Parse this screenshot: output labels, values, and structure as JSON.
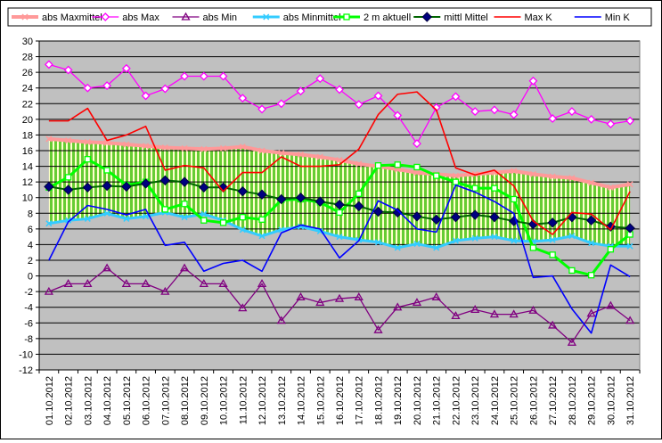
{
  "chart_data": {
    "type": "line",
    "title": "",
    "xlabel": "",
    "ylabel": "",
    "ylim": [
      -12,
      30
    ],
    "ytick_step": 2,
    "grid": true,
    "legend_position": "top",
    "plot_background": "#c0c0c0",
    "band_fill": "green-yellow hatched (between abs Minmittel and abs Maxmittel)",
    "categories": [
      "01.10.2012",
      "02.10.2012",
      "03.10.2012",
      "04.10.2012",
      "05.10.2012",
      "06.10.2012",
      "07.10.2012",
      "08.10.2012",
      "09.10.2012",
      "10.10.2012",
      "11.10.2012",
      "12.10.2012",
      "13.10.2012",
      "14.10.2012",
      "15.10.2012",
      "16.10.2012",
      "17.10.2012",
      "18.10.2012",
      "19.10.2012",
      "20.10.2012",
      "21.10.2012",
      "22.10.2012",
      "23.10.2012",
      "24.10.2012",
      "25.10.2012",
      "26.10.2012",
      "27.10.2012",
      "28.10.2012",
      "29.10.2012",
      "30.10.2012",
      "31.10.2012"
    ],
    "series": [
      {
        "name": "abs Maxmittel",
        "color": "#ff9999",
        "marker": "x",
        "values": [
          17.5,
          17.3,
          17.1,
          17.0,
          16.8,
          16.6,
          16.4,
          16.3,
          16.2,
          16.3,
          16.5,
          16.0,
          15.7,
          15.5,
          15.2,
          14.8,
          14.3,
          14.0,
          13.6,
          13.2,
          13.0,
          12.8,
          13.0,
          13.2,
          13.4,
          13.0,
          12.7,
          12.5,
          11.9,
          11.3,
          11.7
        ]
      },
      {
        "name": "abs Max",
        "color": "#ff00ff",
        "marker": "diamond-open",
        "values": [
          27.0,
          26.3,
          24.0,
          24.3,
          26.5,
          23.0,
          23.9,
          25.5,
          25.5,
          25.5,
          22.7,
          21.3,
          22.0,
          23.6,
          25.2,
          23.8,
          21.9,
          23.0,
          20.5,
          16.9,
          21.5,
          22.9,
          21.0,
          21.2,
          20.6,
          24.9,
          20.1,
          21.0,
          20.0,
          19.4,
          19.8
        ]
      },
      {
        "name": "abs Min",
        "color": "#800080",
        "marker": "triangle-open",
        "values": [
          -2.0,
          -1.0,
          -1.0,
          1.0,
          -1.0,
          -1.0,
          -2.0,
          1.0,
          -1.0,
          -1.0,
          -4.1,
          -1.0,
          -5.7,
          -2.7,
          -3.4,
          -2.9,
          -2.7,
          -6.9,
          -4.0,
          -3.4,
          -2.7,
          -5.1,
          -4.3,
          -4.9,
          -4.9,
          -4.4,
          -6.3,
          -8.5,
          -4.8,
          -3.8,
          -5.7
        ]
      },
      {
        "name": "abs Minmittel",
        "color": "#33ccff",
        "marker": "x",
        "values": [
          6.7,
          7.1,
          7.3,
          8.0,
          7.3,
          7.6,
          8.1,
          7.5,
          7.9,
          7.1,
          5.9,
          5.1,
          5.9,
          6.3,
          5.7,
          5.0,
          4.6,
          4.3,
          3.6,
          4.1,
          3.6,
          4.5,
          4.8,
          5.0,
          4.5,
          4.4,
          4.6,
          5.1,
          4.2,
          3.8,
          3.8
        ]
      },
      {
        "name": "2 m aktuell",
        "color": "#00ff00",
        "marker": "square-open",
        "values": [
          11.3,
          12.6,
          14.9,
          13.5,
          11.6,
          12.0,
          8.5,
          9.2,
          7.1,
          6.8,
          7.5,
          7.2,
          9.7,
          9.8,
          9.4,
          8.1,
          10.5,
          14.1,
          14.2,
          13.9,
          12.8,
          12.0,
          11.2,
          11.2,
          9.8,
          3.6,
          2.7,
          0.7,
          0.1,
          3.4,
          5.3
        ]
      },
      {
        "name": "mittl Mittel",
        "color": "#006400",
        "marker": "diamond-filled-navy",
        "values": [
          11.4,
          11.0,
          11.3,
          11.5,
          11.4,
          11.8,
          12.2,
          12.0,
          11.3,
          11.3,
          10.8,
          10.4,
          9.8,
          10.0,
          9.5,
          9.1,
          8.9,
          8.2,
          8.1,
          7.6,
          7.2,
          7.5,
          7.8,
          7.5,
          7.0,
          6.6,
          6.8,
          7.5,
          7.1,
          6.3,
          6.1
        ]
      },
      {
        "name": "Max K",
        "color": "#ff0000",
        "marker": "none",
        "values": [
          19.8,
          19.8,
          21.4,
          17.3,
          18.0,
          19.1,
          13.5,
          14.1,
          13.8,
          10.8,
          13.2,
          13.2,
          15.2,
          14.0,
          14.0,
          14.2,
          16.2,
          20.6,
          23.2,
          23.5,
          21.2,
          13.8,
          12.9,
          13.5,
          11.5,
          7.0,
          5.3,
          8.1,
          7.9,
          5.9,
          10.8
        ]
      },
      {
        "name": "Min K",
        "color": "#0000ff",
        "marker": "none",
        "values": [
          2.0,
          6.9,
          9.0,
          8.5,
          7.8,
          8.5,
          3.9,
          4.3,
          0.6,
          1.6,
          2.0,
          0.6,
          5.5,
          6.5,
          6.0,
          2.3,
          4.5,
          9.6,
          8.4,
          6.0,
          5.6,
          11.6,
          10.7,
          9.5,
          8.0,
          -0.2,
          0.0,
          -4.2,
          -7.3,
          1.4,
          -0.1
        ]
      }
    ]
  },
  "colors": {
    "plot_bg": "#c0c0c0",
    "gridline": "#000000",
    "band_hatch_green": "#66cc33",
    "band_hatch_light": "#ffffcc",
    "marker_fill_navy": "#000080"
  }
}
